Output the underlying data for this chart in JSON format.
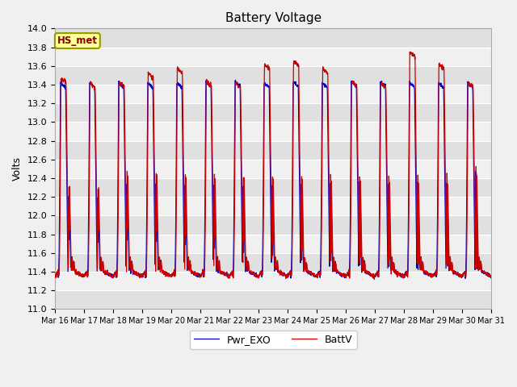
{
  "title": "Battery Voltage",
  "ylabel": "Volts",
  "ylim": [
    11.0,
    14.0
  ],
  "yticks": [
    11.0,
    11.2,
    11.4,
    11.6,
    11.8,
    12.0,
    12.2,
    12.4,
    12.6,
    12.8,
    13.0,
    13.2,
    13.4,
    13.6,
    13.8,
    14.0
  ],
  "xtick_labels": [
    "Mar 16",
    "Mar 17",
    "Mar 18",
    "Mar 19",
    "Mar 20",
    "Mar 21",
    "Mar 22",
    "Mar 23",
    "Mar 24",
    "Mar 25",
    "Mar 26",
    "Mar 27",
    "Mar 28",
    "Mar 29",
    "Mar 30",
    "Mar 31"
  ],
  "line1_label": "BattV",
  "line1_color": "#cc0000",
  "line2_label": "Pwr_EXO",
  "line2_color": "#0000cc",
  "annotation_text": "HS_met",
  "annotation_bg": "#ffff99",
  "annotation_border": "#999900",
  "bg_color": "#f0f0f0",
  "plot_bg_light": "#f0f0f0",
  "plot_bg_dark": "#e0e0e0",
  "figsize": [
    6.4,
    4.8
  ],
  "dpi": 100
}
